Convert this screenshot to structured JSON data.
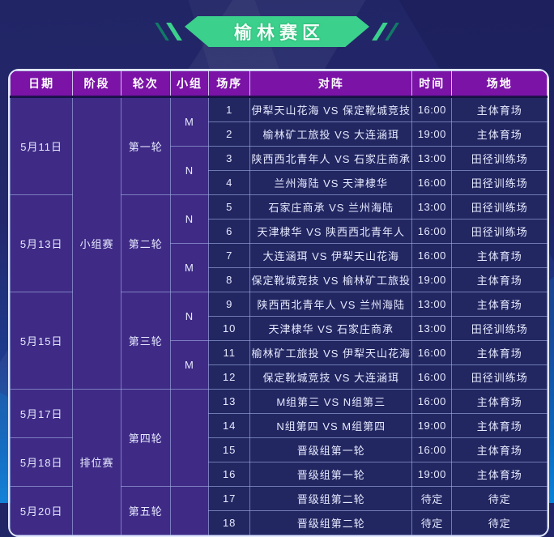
{
  "banner": {
    "title": "榆林赛区"
  },
  "colors": {
    "accent-green": "#3bd08c",
    "slash-dark": "#117a66",
    "header-purple": "#7b13a7",
    "left-purple": "#3f2b86",
    "data-navy": "#222761"
  },
  "table": {
    "headers": [
      "日期",
      "阶段",
      "轮次",
      "小组",
      "场序",
      "对阵",
      "时间",
      "场地"
    ],
    "date_spans": [
      {
        "label": "5月11日",
        "start": 1,
        "span": 4
      },
      {
        "label": "5月13日",
        "start": 5,
        "span": 4
      },
      {
        "label": "5月15日",
        "start": 9,
        "span": 4
      },
      {
        "label": "5月17日",
        "start": 13,
        "span": 2
      },
      {
        "label": "5月18日",
        "start": 15,
        "span": 2
      },
      {
        "label": "5月20日",
        "start": 17,
        "span": 2
      }
    ],
    "stage_spans": [
      {
        "label": "小组赛",
        "start": 1,
        "span": 12
      },
      {
        "label": "排位赛",
        "start": 13,
        "span": 6
      }
    ],
    "round_spans": [
      {
        "label": "第一轮",
        "start": 1,
        "span": 4
      },
      {
        "label": "第二轮",
        "start": 5,
        "span": 4
      },
      {
        "label": "第三轮",
        "start": 9,
        "span": 4
      },
      {
        "label": "第四轮",
        "start": 13,
        "span": 4
      },
      {
        "label": "第五轮",
        "start": 17,
        "span": 2
      }
    ],
    "group_spans": [
      {
        "label": "M",
        "start": 1,
        "span": 2
      },
      {
        "label": "N",
        "start": 3,
        "span": 2
      },
      {
        "label": "N",
        "start": 5,
        "span": 2
      },
      {
        "label": "M",
        "start": 7,
        "span": 2
      },
      {
        "label": "N",
        "start": 9,
        "span": 2
      },
      {
        "label": "M",
        "start": 11,
        "span": 2
      },
      {
        "label": "",
        "start": 13,
        "span": 4
      },
      {
        "label": "",
        "start": 17,
        "span": 2
      }
    ],
    "matches": [
      {
        "no": "1",
        "match": "伊犁天山花海 VS 保定靴城竞技",
        "time": "16:00",
        "venue": "主体育场"
      },
      {
        "no": "2",
        "match": "榆林矿工旅投 VS 大连涵珥",
        "time": "19:00",
        "venue": "主体育场"
      },
      {
        "no": "3",
        "match": "陕西西北青年人 VS 石家庄商承",
        "time": "13:00",
        "venue": "田径训练场"
      },
      {
        "no": "4",
        "match": "兰州海陆 VS 天津棣华",
        "time": "16:00",
        "venue": "田径训练场"
      },
      {
        "no": "5",
        "match": "石家庄商承 VS 兰州海陆",
        "time": "13:00",
        "venue": "田径训练场"
      },
      {
        "no": "6",
        "match": "天津棣华 VS 陕西西北青年人",
        "time": "16:00",
        "venue": "田径训练场"
      },
      {
        "no": "7",
        "match": "大连涵珥 VS 伊犁天山花海",
        "time": "16:00",
        "venue": "主体育场"
      },
      {
        "no": "8",
        "match": "保定靴城竞技 VS 榆林矿工旅投",
        "time": "19:00",
        "venue": "主体育场"
      },
      {
        "no": "9",
        "match": "陕西西北青年人 VS 兰州海陆",
        "time": "13:00",
        "venue": "主体育场"
      },
      {
        "no": "10",
        "match": "天津棣华 VS 石家庄商承",
        "time": "13:00",
        "venue": "田径训练场"
      },
      {
        "no": "11",
        "match": "榆林矿工旅投 VS 伊犁天山花海",
        "time": "16:00",
        "venue": "主体育场"
      },
      {
        "no": "12",
        "match": "保定靴城竞技 VS 大连涵珥",
        "time": "16:00",
        "venue": "田径训练场"
      },
      {
        "no": "13",
        "match": "M组第三 VS N组第三",
        "time": "16:00",
        "venue": "主体育场"
      },
      {
        "no": "14",
        "match": "N组第四 VS M组第四",
        "time": "19:00",
        "venue": "主体育场"
      },
      {
        "no": "15",
        "match": "晋级组第一轮",
        "time": "16:00",
        "venue": "主体育场"
      },
      {
        "no": "16",
        "match": "晋级组第一轮",
        "time": "19:00",
        "venue": "主体育场"
      },
      {
        "no": "17",
        "match": "晋级组第二轮",
        "time": "待定",
        "venue": "待定"
      },
      {
        "no": "18",
        "match": "晋级组第二轮",
        "time": "待定",
        "venue": "待定"
      }
    ]
  }
}
